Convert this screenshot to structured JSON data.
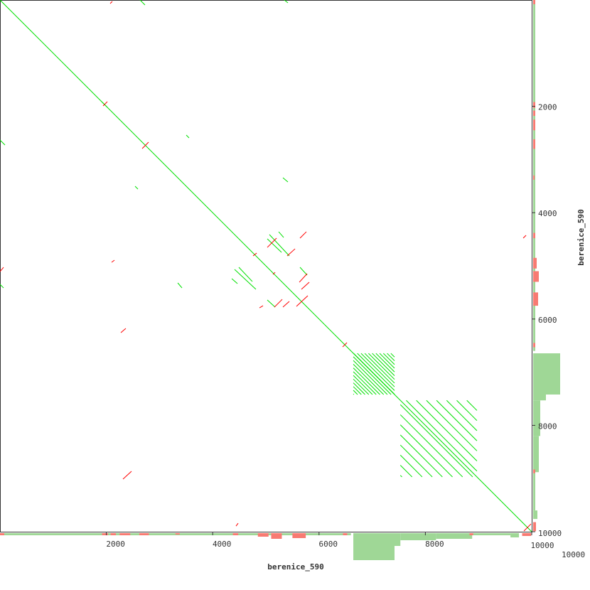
{
  "chart_data": {
    "type": "dotplot",
    "xlabel": "berenice_590",
    "ylabel": "berenice_590",
    "xlim": [
      0,
      10000
    ],
    "ylim": [
      0,
      10000
    ],
    "xticks": [
      "2000",
      "4000",
      "6000",
      "8000",
      "10000"
    ],
    "yticks": [
      "2000",
      "4000",
      "6000",
      "8000",
      "10000"
    ],
    "tick_values": [
      2000,
      4000,
      6000,
      8000,
      10000
    ],
    "corner_label": "10000",
    "colors": {
      "forward": "#00e000",
      "reverse": "#ff0000",
      "coverage": "#9fd796",
      "coverage_reverse": "#f87a72",
      "frame": "#333333"
    },
    "forward_segments": [
      [
        0,
        0,
        10000,
        10000
      ],
      [
        4412,
        5067,
        4813,
        5441
      ],
      [
        5067,
        4412,
        5441,
        4813
      ],
      [
        4492,
        5027,
        4746,
        5295
      ],
      [
        5027,
        4492,
        5295,
        4746
      ],
      [
        4359,
        5241,
        4466,
        5335
      ],
      [
        5241,
        4359,
        5335,
        4466
      ],
      [
        5642,
        5027,
        5776,
        5174
      ],
      [
        5027,
        5642,
        5174,
        5776
      ],
      [
        0,
        2634,
        94,
        2727
      ],
      [
        2634,
        0,
        2727,
        94
      ],
      [
        0,
        5348,
        67,
        5415
      ],
      [
        5348,
        0,
        5415,
        54
      ],
      [
        2540,
        3503,
        2594,
        3556
      ],
      [
        3503,
        2540,
        3556,
        2594
      ],
      [
        5321,
        3343,
        5415,
        3423
      ],
      [
        3343,
        5321,
        3423,
        5415
      ],
      [
        1912,
        1912,
        2019,
        2019
      ]
    ],
    "reverse_segments": [
      [
        5027,
        4653,
        5201,
        4479
      ],
      [
        5401,
        4813,
        5549,
        4680
      ],
      [
        5642,
        4479,
        5762,
        4359
      ],
      [
        4760,
        4813,
        4827,
        4760
      ],
      [
        5629,
        5308,
        5776,
        5147
      ],
      [
        5669,
        5441,
        5816,
        5308
      ],
      [
        5575,
        5762,
        5789,
        5562
      ],
      [
        5161,
        5776,
        5308,
        5629
      ],
      [
        5321,
        5776,
        5441,
        5669
      ],
      [
        4880,
        5789,
        4947,
        5749
      ],
      [
        5134,
        5161,
        5174,
        5121
      ],
      [
        2273,
        6257,
        2366,
        6177
      ],
      [
        2313,
        9011,
        2473,
        8864
      ],
      [
        2674,
        2794,
        2794,
        2674
      ],
      [
        4439,
        9894,
        4479,
        9840
      ],
      [
        2072,
        67,
        2112,
        27
      ],
      [
        9840,
        4479,
        9894,
        4425
      ],
      [
        0,
        5107,
        67,
        5027
      ],
      [
        2099,
        4933,
        2153,
        4893
      ],
      [
        1939,
        1992,
        2019,
        1912
      ],
      [
        6444,
        6525,
        6525,
        6444
      ],
      [
        9854,
        9987,
        9987,
        9854
      ]
    ],
    "tandem_repeats": [
      {
        "start": 6645,
        "end": 7420,
        "period": 70
      },
      {
        "start": 7530,
        "end": 8970,
        "period": 190
      }
    ],
    "coverage": [
      {
        "start": 0,
        "end": 6600,
        "forward": 3
      },
      {
        "start": 6645,
        "end": 7420,
        "forward": 38
      },
      {
        "start": 7420,
        "end": 7530,
        "forward": 18
      },
      {
        "start": 7530,
        "end": 8200,
        "forward": 10
      },
      {
        "start": 8200,
        "end": 8880,
        "forward": 8
      },
      {
        "start": 8880,
        "end": 9600,
        "forward": 3
      },
      {
        "start": 9600,
        "end": 9760,
        "forward": 6
      }
    ],
    "coverage_reverse": [
      {
        "start": 0,
        "end": 80,
        "reverse": 3
      },
      {
        "start": 1920,
        "end": 2030,
        "reverse": 3
      },
      {
        "start": 2080,
        "end": 2180,
        "reverse": 3
      },
      {
        "start": 2250,
        "end": 2450,
        "reverse": 3
      },
      {
        "start": 2620,
        "end": 2800,
        "reverse": 3
      },
      {
        "start": 3300,
        "end": 3380,
        "reverse": 2
      },
      {
        "start": 4380,
        "end": 4480,
        "reverse": 3
      },
      {
        "start": 4850,
        "end": 5050,
        "reverse": 5
      },
      {
        "start": 5100,
        "end": 5300,
        "reverse": 8
      },
      {
        "start": 5500,
        "end": 5750,
        "reverse": 7
      },
      {
        "start": 6450,
        "end": 6530,
        "reverse": 3
      },
      {
        "start": 8830,
        "end": 8900,
        "reverse": 3
      },
      {
        "start": 9820,
        "end": 9990,
        "reverse": 4
      }
    ]
  }
}
